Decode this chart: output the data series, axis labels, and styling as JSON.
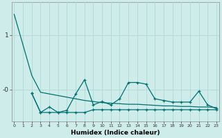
{
  "xlabel": "Humidex (Indice chaleur)",
  "bg_color": "#cdecea",
  "line_color": "#007070",
  "grid_color": "#b0d8d5",
  "trend_x": [
    0,
    1,
    2,
    3,
    4,
    5,
    6,
    7,
    8,
    9,
    10,
    11,
    12,
    13,
    14,
    15,
    16,
    17,
    18,
    19,
    20,
    21,
    22,
    23
  ],
  "trend_y": [
    1.38,
    0.82,
    0.26,
    -0.05,
    -0.08,
    -0.11,
    -0.14,
    -0.17,
    -0.2,
    -0.22,
    -0.24,
    -0.25,
    -0.26,
    -0.27,
    -0.27,
    -0.28,
    -0.29,
    -0.3,
    -0.3,
    -0.31,
    -0.31,
    -0.32,
    -0.32,
    -0.33
  ],
  "zigzag_x": [
    2,
    3,
    4,
    5,
    6,
    7,
    8,
    9,
    10,
    11,
    12,
    13,
    14,
    15,
    16,
    17,
    18,
    19,
    20,
    21,
    22,
    23
  ],
  "zigzag_y": [
    -0.07,
    -0.42,
    -0.32,
    -0.42,
    -0.38,
    -0.08,
    0.18,
    -0.28,
    -0.22,
    -0.28,
    -0.17,
    0.13,
    0.13,
    0.1,
    -0.17,
    -0.2,
    -0.23,
    -0.23,
    -0.23,
    -0.03,
    -0.28,
    -0.35
  ],
  "flat_x": [
    2,
    3,
    4,
    5,
    6,
    7,
    8,
    9,
    10,
    11,
    12,
    13,
    14,
    15,
    16,
    17,
    18,
    19,
    20,
    21,
    22,
    23
  ],
  "flat_y": [
    -0.07,
    -0.42,
    -0.42,
    -0.42,
    -0.42,
    -0.42,
    -0.42,
    -0.37,
    -0.37,
    -0.37,
    -0.37,
    -0.37,
    -0.37,
    -0.37,
    -0.37,
    -0.37,
    -0.37,
    -0.37,
    -0.37,
    -0.37,
    -0.37,
    -0.37
  ],
  "ylim": [
    -0.58,
    1.6
  ],
  "yticks": [
    0.0,
    1.0
  ],
  "ytick_labels": [
    "-0",
    "1"
  ],
  "xlim": [
    -0.3,
    23.3
  ]
}
